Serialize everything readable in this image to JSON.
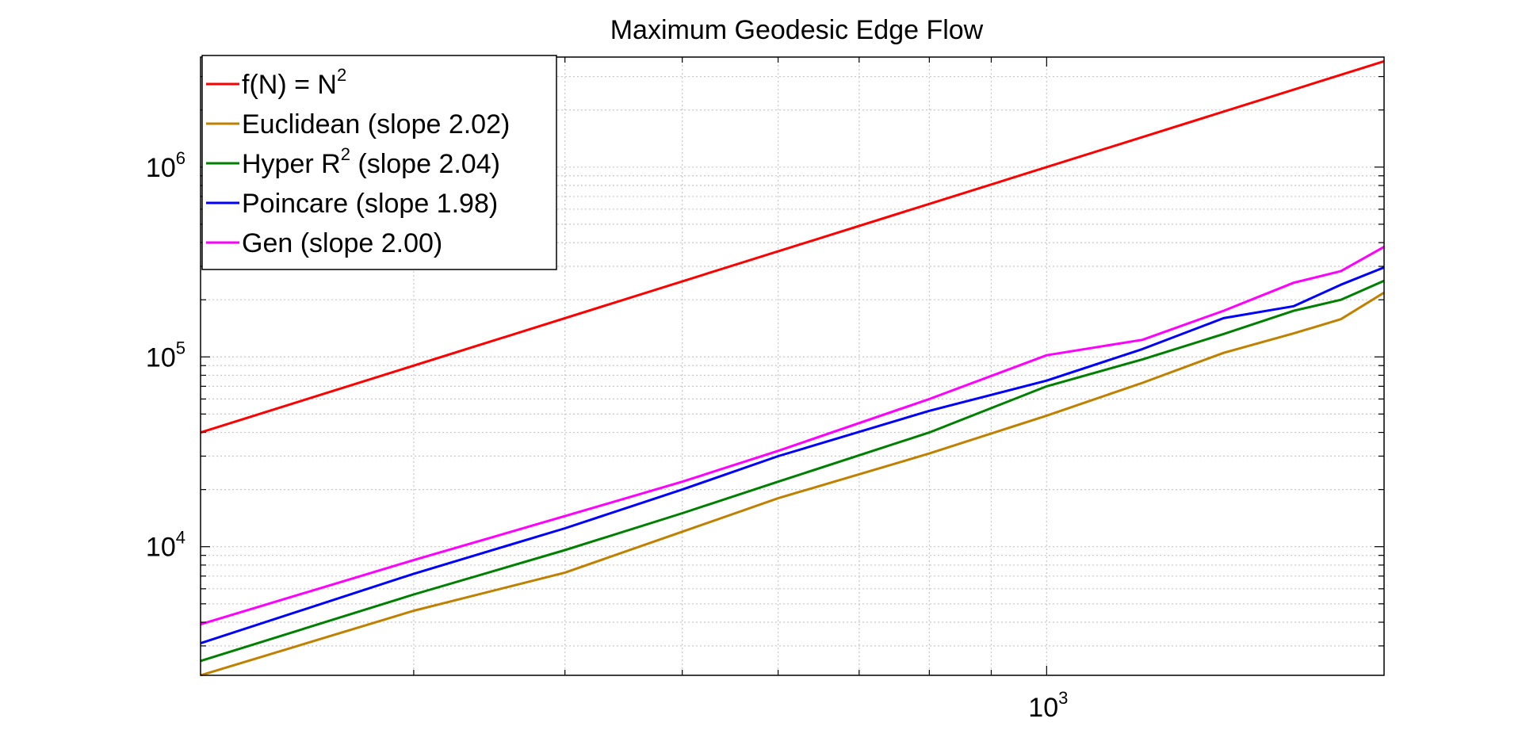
{
  "chart_data": {
    "type": "line",
    "title": "Maximum Geodesic Edge Flow",
    "xlabel": "",
    "ylabel": "",
    "xscale": "log",
    "yscale": "log",
    "xlim": [
      200,
      1900
    ],
    "ylim": [
      2100,
      3800000
    ],
    "grid": true,
    "legend_position": "top-left",
    "x_ticks": [
      {
        "base": "10",
        "exp": "3",
        "value": 1000
      }
    ],
    "y_ticks": [
      {
        "base": "10",
        "exp": "4",
        "value": 10000
      },
      {
        "base": "10",
        "exp": "5",
        "value": 100000
      },
      {
        "base": "10",
        "exp": "6",
        "value": 1000000
      }
    ],
    "series": [
      {
        "name": "f(N) = N",
        "name_sup": "2",
        "color": "#ff0000",
        "x": [
          200,
          1900
        ],
        "values": [
          40000,
          3610000
        ]
      },
      {
        "name": "Euclidean (slope 2.02)",
        "color": "#c08000",
        "x": [
          200,
          300,
          400,
          500,
          600,
          800,
          1000,
          1200,
          1400,
          1600,
          1750,
          1900
        ],
        "values": [
          2100,
          4600,
          7300,
          12000,
          18000,
          31000,
          49000,
          73000,
          105000,
          133000,
          158000,
          218000
        ]
      },
      {
        "name": "Hyper R",
        "name_sup": "2",
        "name_suffix": " (slope 2.04)",
        "color": "#008000",
        "x": [
          200,
          300,
          400,
          500,
          600,
          800,
          1000,
          1200,
          1400,
          1600,
          1750,
          1900
        ],
        "values": [
          2500,
          5600,
          9600,
          15000,
          22000,
          40000,
          70000,
          97000,
          132000,
          175000,
          200000,
          252000
        ]
      },
      {
        "name": "Poincare (slope 1.98)",
        "color": "#0000ff",
        "x": [
          200,
          300,
          400,
          500,
          600,
          800,
          1000,
          1200,
          1400,
          1600,
          1750,
          1900
        ],
        "values": [
          3100,
          7200,
          12500,
          20000,
          30000,
          52000,
          75000,
          110000,
          160000,
          185000,
          240000,
          296000
        ]
      },
      {
        "name": "Gen (slope 2.00)",
        "color": "#ff00ff",
        "x": [
          200,
          300,
          400,
          500,
          600,
          800,
          1000,
          1200,
          1400,
          1600,
          1750,
          1900
        ],
        "values": [
          3900,
          8500,
          14500,
          22000,
          32000,
          60000,
          102000,
          123000,
          175000,
          246000,
          283000,
          380000
        ]
      }
    ]
  }
}
